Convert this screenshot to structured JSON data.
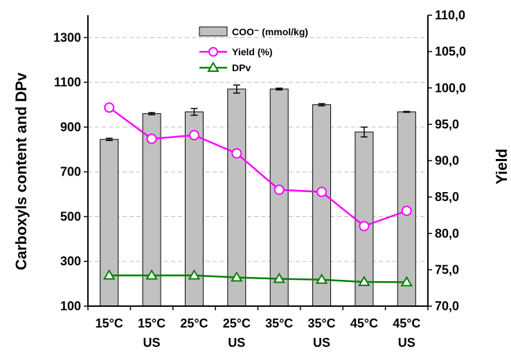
{
  "chart_data": {
    "type": "bar",
    "categories": [
      [
        "15°C",
        ""
      ],
      [
        "15°C",
        "US"
      ],
      [
        "25°C",
        ""
      ],
      [
        "25°C",
        "US"
      ],
      [
        "35°C",
        ""
      ],
      [
        "35°C",
        "US"
      ],
      [
        "45°C",
        ""
      ],
      [
        "45°C",
        "US"
      ]
    ],
    "ylabel": "Carboxyls content and DPv",
    "y2label": "Yield",
    "ylim": [
      100,
      1400
    ],
    "y2lim": [
      70,
      110
    ],
    "yticks": [
      "100",
      "300",
      "500",
      "700",
      "900",
      "1100",
      "1300"
    ],
    "y2ticks": [
      "70,0",
      "75,0",
      "80,0",
      "85,0",
      "90,0",
      "95,0",
      "100,0",
      "105,0",
      "110,0"
    ],
    "grid": true,
    "legend_position": "top-center",
    "series": [
      {
        "name": "COO⁻ (mmol/kg)",
        "kind": "bar",
        "axis": "left",
        "values": [
          845,
          960,
          968,
          1070,
          1070,
          1000,
          878,
          968
        ],
        "errors": [
          5,
          5,
          15,
          18,
          4,
          5,
          22,
          2
        ],
        "color": "#c0c0c0"
      },
      {
        "name": "Yield (%)",
        "kind": "line",
        "axis": "right",
        "marker": "circle",
        "values": [
          97.3,
          93.0,
          93.5,
          91.0,
          86.0,
          85.7,
          81.0,
          83.1
        ],
        "color": "#ff00ff"
      },
      {
        "name": "DPv",
        "kind": "line",
        "axis": "left",
        "marker": "triangle",
        "values": [
          237,
          237,
          237,
          228,
          222,
          218,
          208,
          207
        ],
        "color": "#008000"
      }
    ]
  }
}
